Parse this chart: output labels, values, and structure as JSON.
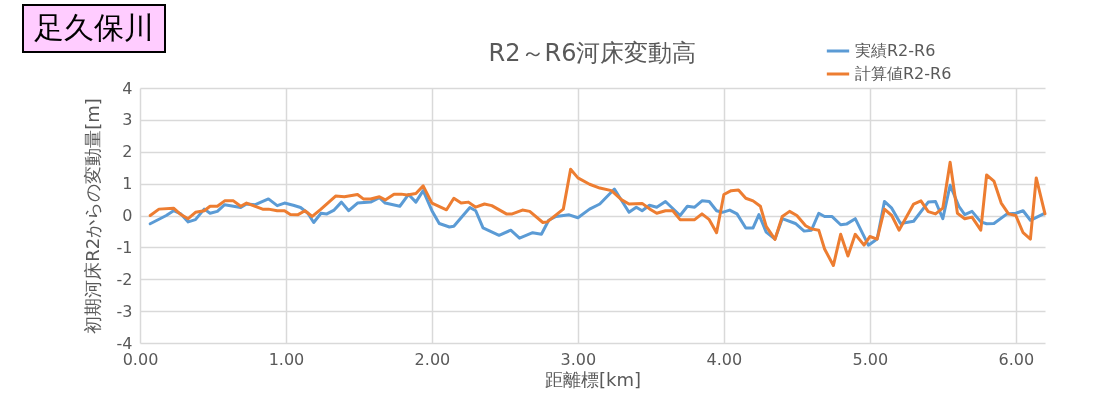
{
  "chart_data": {
    "type": "line",
    "title": "R2～R6河床変動高",
    "xlabel": "距離標[km]",
    "ylabel": "初期河床R2からの変動量[m]",
    "annotations": [
      "足久保川"
    ],
    "xlim": [
      0,
      6.2
    ],
    "xticks": [
      {
        "value": 0,
        "label": "0.00"
      },
      {
        "value": 1,
        "label": "1.00"
      },
      {
        "value": 2,
        "label": "2.00"
      },
      {
        "value": 3,
        "label": "3.00"
      },
      {
        "value": 4,
        "label": "4.00"
      },
      {
        "value": 5,
        "label": "5.00"
      },
      {
        "value": 6,
        "label": "6.00"
      }
    ],
    "ylim": [
      -4,
      4
    ],
    "yticks": [
      -4,
      -3,
      -2,
      -1,
      0,
      1,
      2,
      3,
      4
    ],
    "grid": true,
    "legend": "top right",
    "marker": "none",
    "line_style": "solid",
    "series": [
      {
        "name": "実績R2-R6",
        "color": "#5b9bd5",
        "x": [
          0.07,
          0.18,
          0.23,
          0.28,
          0.33,
          0.38,
          0.44,
          0.48,
          0.53,
          0.58,
          0.69,
          0.73,
          0.79,
          0.88,
          0.94,
          0.99,
          1.05,
          1.1,
          1.15,
          1.19,
          1.24,
          1.28,
          1.33,
          1.38,
          1.43,
          1.49,
          1.58,
          1.64,
          1.68,
          1.78,
          1.84,
          1.89,
          1.94,
          2.0,
          2.05,
          2.12,
          2.15,
          2.26,
          2.3,
          2.35,
          2.46,
          2.54,
          2.6,
          2.69,
          2.75,
          2.8,
          2.85,
          2.94,
          3.0,
          3.08,
          3.15,
          3.25,
          3.35,
          3.4,
          3.44,
          3.49,
          3.54,
          3.6,
          3.7,
          3.75,
          3.8,
          3.85,
          3.9,
          3.95,
          3.99,
          4.04,
          4.09,
          4.15,
          4.2,
          4.24,
          4.29,
          4.35,
          4.4,
          4.49,
          4.55,
          4.6,
          4.65,
          4.69,
          4.74,
          4.8,
          4.84,
          4.9,
          4.99,
          5.05,
          5.1,
          5.15,
          5.21,
          5.3,
          5.4,
          5.45,
          5.5,
          5.55,
          5.61,
          5.65,
          5.7,
          5.76,
          5.8,
          5.85,
          5.94,
          6.0,
          6.05,
          6.1,
          6.19
        ],
        "values": [
          -0.26,
          0.0,
          0.15,
          0.05,
          -0.2,
          -0.13,
          0.2,
          0.07,
          0.13,
          0.34,
          0.25,
          0.36,
          0.34,
          0.52,
          0.31,
          0.39,
          0.32,
          0.25,
          0.07,
          -0.22,
          0.07,
          0.05,
          0.17,
          0.42,
          0.15,
          0.39,
          0.42,
          0.56,
          0.39,
          0.29,
          0.66,
          0.42,
          0.78,
          0.15,
          -0.25,
          -0.36,
          -0.34,
          0.25,
          0.15,
          -0.39,
          -0.62,
          -0.46,
          -0.71,
          -0.54,
          -0.59,
          -0.15,
          -0.03,
          0.02,
          -0.07,
          0.2,
          0.36,
          0.83,
          0.1,
          0.26,
          0.15,
          0.32,
          0.26,
          0.44,
          0.0,
          0.29,
          0.26,
          0.46,
          0.44,
          0.15,
          0.1,
          0.17,
          0.05,
          -0.39,
          -0.39,
          0.03,
          -0.52,
          -0.74,
          -0.1,
          -0.25,
          -0.49,
          -0.46,
          0.07,
          -0.03,
          -0.03,
          -0.29,
          -0.27,
          -0.1,
          -0.93,
          -0.74,
          0.44,
          0.23,
          -0.25,
          -0.18,
          0.42,
          0.44,
          -0.1,
          0.95,
          0.29,
          0.03,
          0.13,
          -0.2,
          -0.26,
          -0.25,
          0.05,
          0.07,
          0.15,
          -0.15,
          0.05
        ]
      },
      {
        "name": "計算値R2-R6",
        "color": "#ed7d31",
        "x": [
          0.07,
          0.13,
          0.23,
          0.28,
          0.33,
          0.38,
          0.44,
          0.48,
          0.53,
          0.58,
          0.64,
          0.69,
          0.73,
          0.84,
          0.88,
          0.94,
          0.99,
          1.03,
          1.08,
          1.13,
          1.18,
          1.24,
          1.34,
          1.4,
          1.49,
          1.53,
          1.58,
          1.64,
          1.68,
          1.74,
          1.79,
          1.83,
          1.89,
          1.94,
          2.0,
          2.1,
          2.15,
          2.2,
          2.25,
          2.3,
          2.36,
          2.41,
          2.51,
          2.55,
          2.62,
          2.67,
          2.76,
          2.79,
          2.9,
          2.95,
          3.0,
          3.08,
          3.15,
          3.23,
          3.3,
          3.35,
          3.44,
          3.5,
          3.54,
          3.6,
          3.65,
          3.7,
          3.8,
          3.85,
          3.9,
          3.95,
          4.0,
          4.05,
          4.1,
          4.15,
          4.2,
          4.25,
          4.29,
          4.35,
          4.4,
          4.45,
          4.5,
          4.56,
          4.6,
          4.65,
          4.69,
          4.75,
          4.8,
          4.85,
          4.9,
          4.96,
          5.0,
          5.05,
          5.1,
          5.15,
          5.2,
          5.3,
          5.35,
          5.4,
          5.45,
          5.5,
          5.55,
          5.6,
          5.65,
          5.7,
          5.76,
          5.8,
          5.85,
          5.9,
          5.95,
          6.0,
          6.05,
          6.1,
          6.14,
          6.2
        ],
        "values": [
          0.0,
          0.2,
          0.23,
          0.03,
          -0.1,
          0.1,
          0.15,
          0.29,
          0.29,
          0.46,
          0.46,
          0.29,
          0.39,
          0.2,
          0.2,
          0.15,
          0.15,
          0.03,
          0.02,
          0.15,
          -0.03,
          0.2,
          0.61,
          0.59,
          0.66,
          0.52,
          0.52,
          0.59,
          0.49,
          0.67,
          0.67,
          0.64,
          0.69,
          0.93,
          0.39,
          0.18,
          0.54,
          0.39,
          0.42,
          0.26,
          0.36,
          0.31,
          0.05,
          0.05,
          0.17,
          0.13,
          -0.22,
          -0.2,
          0.2,
          1.45,
          1.18,
          0.98,
          0.86,
          0.78,
          0.49,
          0.36,
          0.38,
          0.18,
          0.07,
          0.15,
          0.15,
          -0.13,
          -0.13,
          0.05,
          -0.13,
          -0.54,
          0.66,
          0.78,
          0.8,
          0.54,
          0.46,
          0.29,
          -0.34,
          -0.75,
          -0.03,
          0.13,
          0.0,
          -0.32,
          -0.42,
          -0.46,
          -1.05,
          -1.57,
          -0.59,
          -1.27,
          -0.59,
          -0.93,
          -0.66,
          -0.74,
          0.2,
          0.0,
          -0.46,
          0.36,
          0.46,
          0.12,
          0.05,
          0.23,
          1.67,
          0.07,
          -0.1,
          -0.05,
          -0.46,
          1.27,
          1.08,
          0.39,
          0.05,
          0.0,
          -0.54,
          -0.74,
          1.18,
          0.05
        ]
      }
    ]
  }
}
